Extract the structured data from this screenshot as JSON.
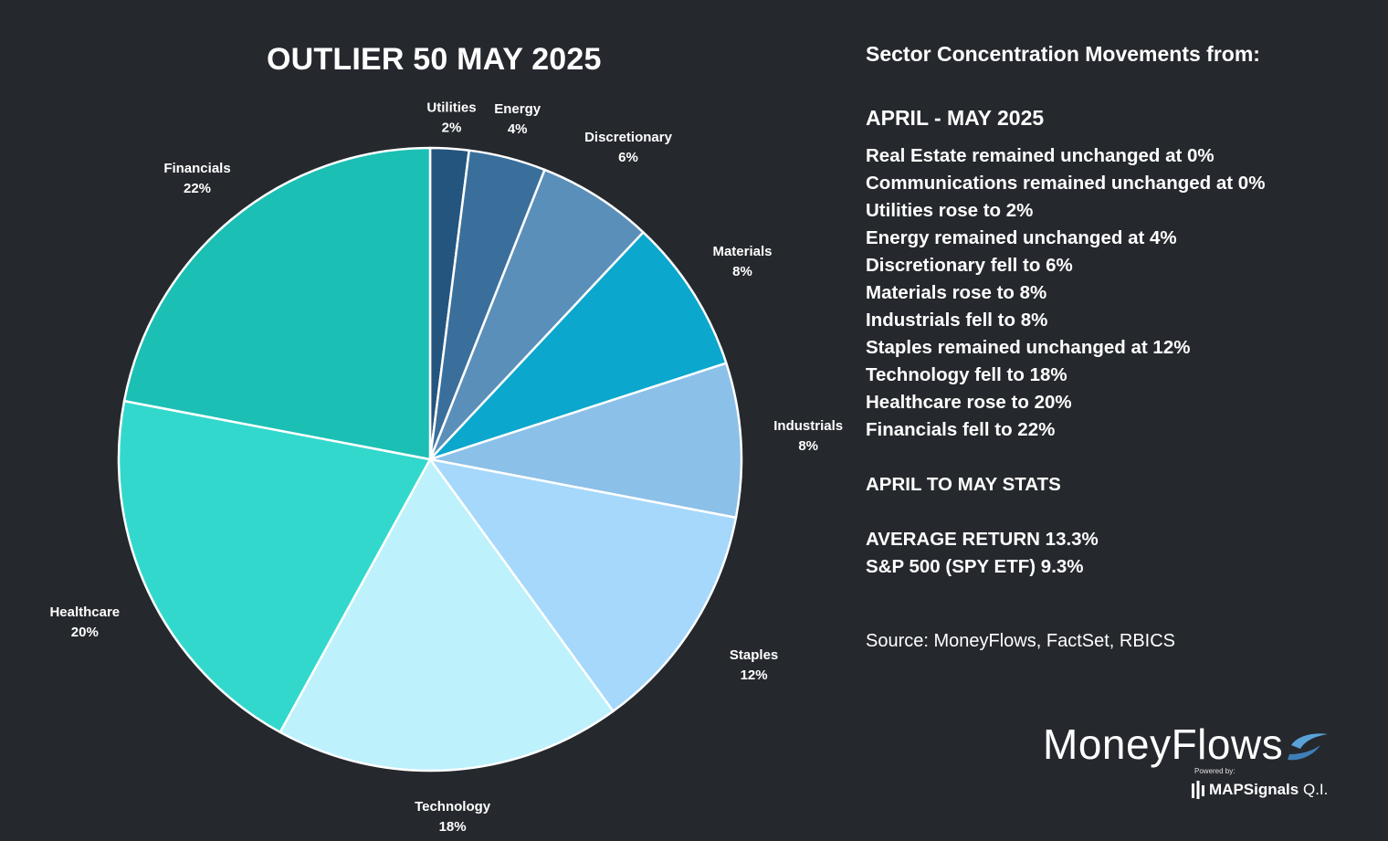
{
  "chart_data": {
    "type": "pie",
    "title": "OUTLIER 50 MAY 2025",
    "slices": [
      {
        "label": "Utilities",
        "value": 2,
        "value_label": "2%",
        "color": "#24557f"
      },
      {
        "label": "Energy",
        "value": 4,
        "value_label": "4%",
        "color": "#3b6f9b"
      },
      {
        "label": "Discretionary",
        "value": 6,
        "value_label": "6%",
        "color": "#5a8fb9"
      },
      {
        "label": "Materials",
        "value": 8,
        "value_label": "8%",
        "color": "#0ba7cd"
      },
      {
        "label": "Industrials",
        "value": 8,
        "value_label": "8%",
        "color": "#8bc0e8"
      },
      {
        "label": "Staples",
        "value": 12,
        "value_label": "12%",
        "color": "#a5d8fb"
      },
      {
        "label": "Technology",
        "value": 18,
        "value_label": "18%",
        "color": "#bdf1fc"
      },
      {
        "label": "Healthcare",
        "value": 20,
        "value_label": "20%",
        "color": "#33d8cd"
      },
      {
        "label": "Financials",
        "value": 22,
        "value_label": "22%",
        "color": "#1bbfb4"
      }
    ],
    "slice_border_color": "#ffffff",
    "legend": "none (direct labels outside slices)"
  },
  "panel": {
    "heading": "Sector Concentration Movements from:",
    "period": "APRIL - MAY 2025",
    "movements": [
      "Real Estate remained unchanged at 0%",
      "Communications remained unchanged at 0%",
      "Utilities rose to 2%",
      "Energy remained unchanged at 4%",
      "Discretionary fell to 6%",
      "Materials rose to 8%",
      "Industrials fell to 8%",
      "Staples remained unchanged at 12%",
      "Technology fell to 18%",
      "Healthcare rose to 20%",
      "Financials fell to 22%"
    ],
    "stats_heading": "APRIL TO MAY STATS",
    "average_return": "AVERAGE RETURN 13.3%",
    "spy_return": "S&P 500 (SPY ETF) 9.3%",
    "source": "Source: MoneyFlows, FactSet, RBICS"
  },
  "logo": {
    "wordmark": "MoneyFlows",
    "powered_by": "Powered by:",
    "sub_brand_bold": "MAPSignals",
    "sub_brand_rest": " Q.I.",
    "accent_color": "#5aa3d8"
  }
}
